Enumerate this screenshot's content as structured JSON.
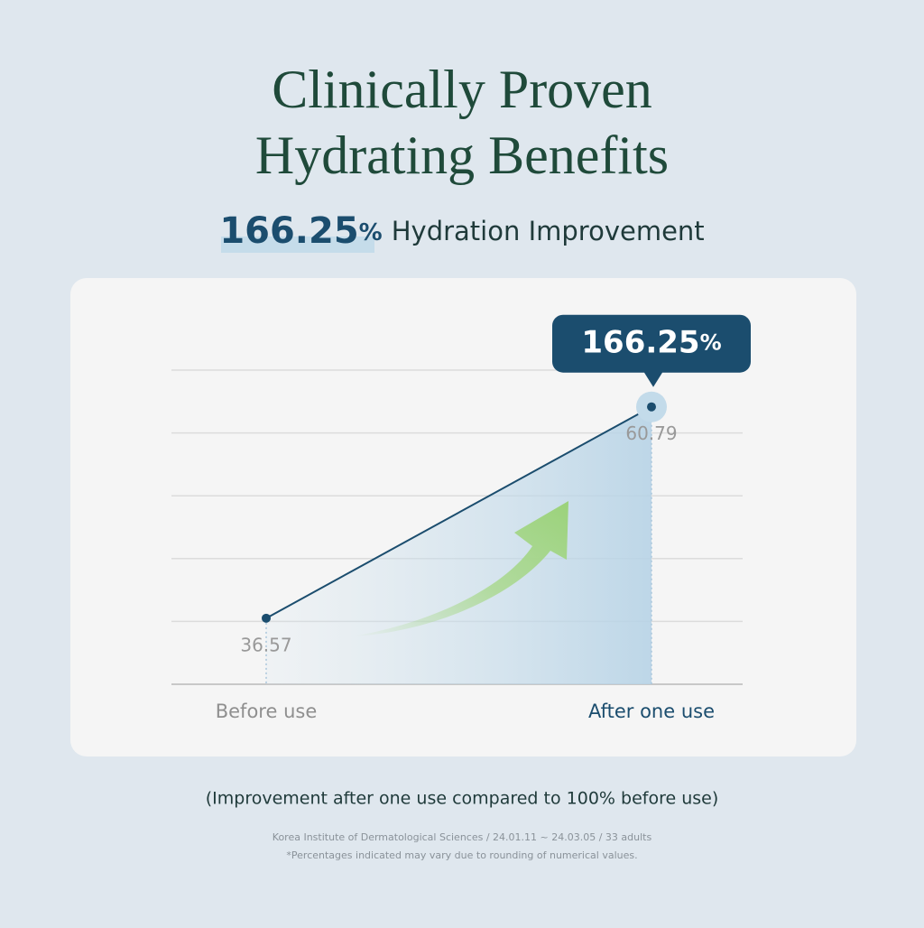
{
  "chart_data": {
    "type": "line",
    "title": [
      "Clinically Proven",
      "Hydrating Benefits"
    ],
    "highlight": {
      "value": "166.25",
      "unit": "%",
      "text": "Hydration Improvement"
    },
    "categories": [
      "Before use",
      "After one use"
    ],
    "values": [
      36.57,
      60.79
    ],
    "color": "#1b4d6e",
    "ylim": [
      29,
      65
    ],
    "yticks": [
      36.2,
      43.4,
      50.6,
      57.8,
      65
    ],
    "grid": true,
    "note": "(Improvement after one use compared to 100% before use)",
    "source": "Korea Institute of Dermatological Sciences / 24.01.11 ~ 24.03.05 / 33 adults",
    "disclaimer": "*Percentages indicated may vary due to rounding of numerical values."
  }
}
